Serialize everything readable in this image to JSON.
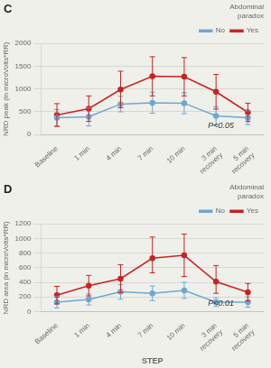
{
  "chart_data": [
    {
      "type": "line",
      "title": "C",
      "categories": [
        "Baseline",
        "1 min",
        "4 min",
        "7 min",
        "10 min",
        "3 min\nrecovery",
        "5 min\nrecovery"
      ],
      "ylabel": "NRD peak (in microVolts*RR)",
      "ylim": [
        0,
        2000
      ],
      "yticks": [
        0,
        500,
        1000,
        1500,
        2000
      ],
      "annotation": "P<0.05",
      "legend_title": "Abdominal\nparadox",
      "legend": "upper right",
      "grid": "y",
      "series": [
        {
          "name": "No",
          "color": "#6EA8D0",
          "marker": "circle",
          "line_style": "solid",
          "values": [
            370,
            390,
            670,
            700,
            690,
            410,
            370
          ],
          "err_lo": [
            180,
            200,
            170,
            230,
            230,
            200,
            150
          ],
          "err_hi": [
            180,
            200,
            170,
            230,
            230,
            200,
            150
          ]
        },
        {
          "name": "Yes",
          "color": "#CC2222",
          "marker": "circle",
          "line_style": "solid",
          "values": [
            430,
            570,
            990,
            1280,
            1270,
            940,
            490
          ],
          "err_lo": [
            250,
            280,
            400,
            430,
            420,
            380,
            200
          ],
          "err_hi": [
            250,
            280,
            400,
            430,
            420,
            380,
            200
          ]
        }
      ]
    },
    {
      "type": "line",
      "title": "D",
      "categories": [
        "Baseline",
        "1 min",
        "4 min",
        "7 min",
        "10 min",
        "3 min\nrecovery",
        "5 min\nrecovery"
      ],
      "xlabel": "STEP",
      "ylabel": "NRD area (in microVolts*RR)",
      "ylim": [
        0,
        1200
      ],
      "yticks": [
        0,
        200,
        400,
        600,
        800,
        1000,
        1200
      ],
      "annotation": "P<0.01",
      "legend_title": "Abdominal\nparadox",
      "legend": "upper right",
      "grid": "y",
      "series": [
        {
          "name": "No",
          "color": "#6EA8D0",
          "marker": "circle",
          "line_style": "solid",
          "values": [
            130,
            165,
            270,
            250,
            290,
            130,
            130
          ],
          "err_lo": [
            80,
            75,
            100,
            100,
            110,
            60,
            70
          ],
          "err_hi": [
            80,
            75,
            100,
            100,
            110,
            60,
            70
          ]
        },
        {
          "name": "Yes",
          "color": "#CC2222",
          "marker": "circle",
          "line_style": "solid",
          "values": [
            225,
            355,
            450,
            730,
            770,
            410,
            265
          ],
          "err_lo": [
            120,
            140,
            190,
            200,
            290,
            160,
            120
          ],
          "err_hi": [
            120,
            140,
            190,
            290,
            290,
            220,
            120
          ]
        }
      ]
    }
  ]
}
